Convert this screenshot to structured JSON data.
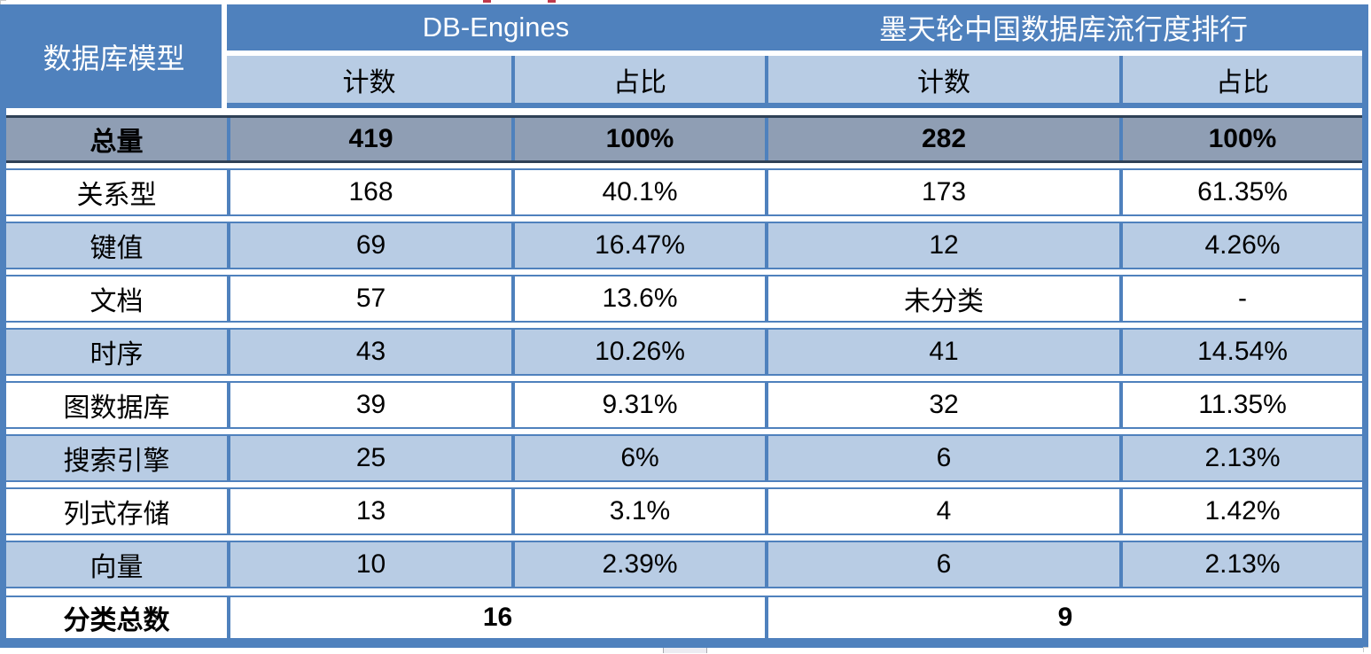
{
  "header": {
    "model_col": "数据库模型",
    "source_left": "DB-Engines",
    "source_right": "墨天轮中国数据库流行度排行",
    "count_label_left": "计数",
    "pct_label_left": "占比",
    "count_label_right": "计数",
    "pct_label_right": "占比"
  },
  "rows": [
    {
      "label": "总量",
      "db_count": "419",
      "db_pct": "100%",
      "mo_count": "282",
      "mo_pct": "100%"
    },
    {
      "label": "关系型",
      "db_count": "168",
      "db_pct": "40.1%",
      "mo_count": "173",
      "mo_pct": "61.35%"
    },
    {
      "label": "键值",
      "db_count": "69",
      "db_pct": "16.47%",
      "mo_count": "12",
      "mo_pct": "4.26%"
    },
    {
      "label": "文档",
      "db_count": "57",
      "db_pct": "13.6%",
      "mo_count": "未分类",
      "mo_pct": "-"
    },
    {
      "label": "时序",
      "db_count": "43",
      "db_pct": "10.26%",
      "mo_count": "41",
      "mo_pct": "14.54%"
    },
    {
      "label": "图数据库",
      "db_count": "39",
      "db_pct": "9.31%",
      "mo_count": "32",
      "mo_pct": "11.35%"
    },
    {
      "label": "搜索引擎",
      "db_count": "25",
      "db_pct": "6%",
      "mo_count": "6",
      "mo_pct": "2.13%"
    },
    {
      "label": "列式存储",
      "db_count": "13",
      "db_pct": "3.1%",
      "mo_count": "4",
      "mo_pct": "1.42%"
    },
    {
      "label": "向量",
      "db_count": "10",
      "db_pct": "2.39%",
      "mo_count": "6",
      "mo_pct": "2.13%"
    }
  ],
  "summary": {
    "label": "分类总数",
    "db_total": "16",
    "mo_total": "9"
  },
  "colors": {
    "accent": "#4F81BD",
    "light": "#B8CCE4",
    "gray": "#8F9EB4",
    "darkline": "#2F4156",
    "red": "#C0394B"
  },
  "chart_data": {
    "type": "table",
    "title": "数据库模型分类对比：DB-Engines vs 墨天轮中国数据库流行度排行",
    "column_groups": [
      "数据库模型",
      "DB-Engines",
      "墨天轮中国数据库流行度排行"
    ],
    "columns": [
      "数据库模型",
      "DB-Engines 计数",
      "DB-Engines 占比",
      "墨天轮 计数",
      "墨天轮 占比"
    ],
    "rows": [
      [
        "总量",
        419,
        "100%",
        282,
        "100%"
      ],
      [
        "关系型",
        168,
        "40.1%",
        173,
        "61.35%"
      ],
      [
        "键值",
        69,
        "16.47%",
        12,
        "4.26%"
      ],
      [
        "文档",
        57,
        "13.6%",
        "未分类",
        "-"
      ],
      [
        "时序",
        43,
        "10.26%",
        41,
        "14.54%"
      ],
      [
        "图数据库",
        39,
        "9.31%",
        32,
        "11.35%"
      ],
      [
        "搜索引擎",
        25,
        "6%",
        6,
        "2.13%"
      ],
      [
        "列式存储",
        13,
        "3.1%",
        4,
        "1.42%"
      ],
      [
        "向量",
        10,
        "2.39%",
        6,
        "2.13%"
      ]
    ],
    "summary_row": [
      "分类总数",
      16,
      9
    ]
  }
}
